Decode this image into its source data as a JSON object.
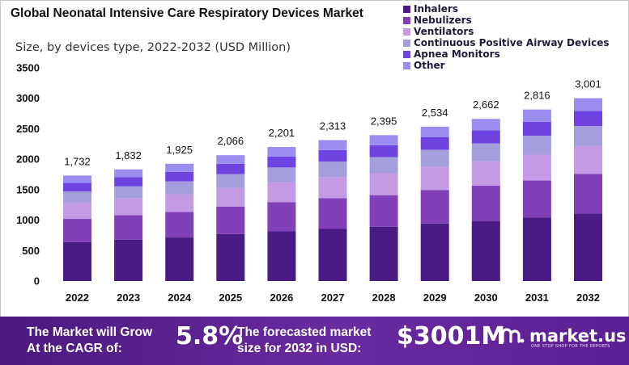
{
  "header": {
    "title": "Global Neonatal Intensive Care Respiratory Devices Market",
    "subtitle": "Size, by devices type, 2022-2032 (USD Million)"
  },
  "colors": {
    "Inhalers": "#4a1a85",
    "Nebulizers": "#8140b7",
    "Ventilators": "#c49ae5",
    "Continuous Positive Airway Devices": "#a49edd",
    "Apnea Monitors": "#6e43e0",
    "Other": "#9b8cf0",
    "banner": "#5a1f8f"
  },
  "chart_data": {
    "type": "bar",
    "stacked": true,
    "categories": [
      "2022",
      "2023",
      "2024",
      "2025",
      "2026",
      "2027",
      "2028",
      "2029",
      "2030",
      "2031",
      "2032"
    ],
    "totals": [
      1732,
      1832,
      1925,
      2066,
      2201,
      2313,
      2395,
      2534,
      2662,
      2816,
      3001
    ],
    "total_labels": [
      "1,732",
      "1,832",
      "1,925",
      "2,066",
      "2,201",
      "2,313",
      "2,395",
      "2,534",
      "2,662",
      "2,816",
      "3,001"
    ],
    "series": [
      {
        "name": "Inhalers",
        "values": [
          640,
          680,
          715,
          770,
          815,
          855,
          890,
          945,
          990,
          1040,
          1110
        ]
      },
      {
        "name": "Nebulizers",
        "values": [
          380,
          400,
          420,
          450,
          480,
          505,
          520,
          550,
          575,
          610,
          650
        ]
      },
      {
        "name": "Ventilators",
        "values": [
          260,
          275,
          290,
          310,
          330,
          345,
          360,
          380,
          400,
          425,
          455
        ]
      },
      {
        "name": "Continuous Positive Airway Devices",
        "values": [
          190,
          200,
          210,
          225,
          240,
          255,
          265,
          280,
          295,
          310,
          330
        ]
      },
      {
        "name": "Apnea Monitors",
        "values": [
          140,
          150,
          157,
          170,
          180,
          190,
          195,
          205,
          215,
          230,
          245
        ]
      },
      {
        "name": "Other",
        "values": [
          122,
          127,
          133,
          141,
          156,
          163,
          165,
          174,
          187,
          201,
          211
        ]
      }
    ],
    "yticks": [
      0,
      500,
      1000,
      1500,
      2000,
      2500,
      3000,
      3500
    ],
    "ylim": [
      0,
      3500
    ],
    "grid": false,
    "legend_position": "top-right"
  },
  "banner": {
    "left_line1": "The Market will Grow",
    "left_line2": "At the CAGR of:",
    "cagr": "5.8%",
    "mid_line1": "The forecasted market",
    "mid_line2": "size for 2032 in USD:",
    "value": "$3001M",
    "brand": "market.us",
    "tagline": "ONE STOP SHOP FOR THE REPORTS"
  }
}
